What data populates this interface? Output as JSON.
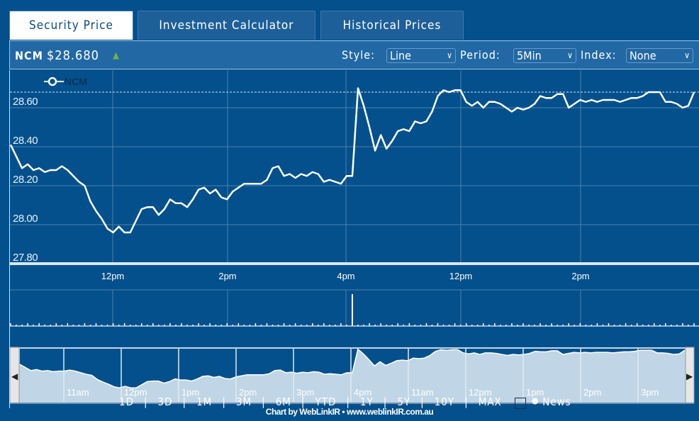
{
  "tabs": [
    {
      "label": "Security Price",
      "active": true
    },
    {
      "label": "Investment Calculator"
    },
    {
      "label": "Historical Prices"
    }
  ],
  "toolbar": {
    "symbol": "NCM",
    "price": "$28.680",
    "change_direction": "up",
    "style_label": "Style:",
    "style_value": "Line",
    "period_label": "Period:",
    "period_value": "5Min",
    "index_label": "Index:",
    "index_value": "None"
  },
  "chart_data": {
    "type": "line",
    "legend": "NCM",
    "legend_placement": "top-left",
    "last_price": 28.68,
    "ylim": [
      27.8,
      28.72
    ],
    "yticks": [
      "28.60",
      "28.40",
      "28.20",
      "28.00",
      "27.80"
    ],
    "ytick_values": [
      28.6,
      28.4,
      28.2,
      28.0,
      27.8
    ],
    "xticks": [
      "12pm",
      "2pm",
      "4pm",
      "12pm",
      "2pm"
    ],
    "grid": true,
    "values": [
      28.41,
      28.35,
      28.29,
      28.31,
      28.28,
      28.29,
      28.27,
      28.28,
      28.28,
      28.3,
      28.28,
      28.25,
      28.22,
      28.2,
      28.12,
      28.07,
      28.03,
      27.98,
      27.96,
      27.99,
      27.96,
      27.96,
      28.02,
      28.08,
      28.09,
      28.09,
      28.05,
      28.08,
      28.13,
      28.11,
      28.11,
      28.09,
      28.13,
      28.18,
      28.19,
      28.16,
      28.18,
      28.14,
      28.13,
      28.17,
      28.19,
      28.21,
      28.21,
      28.21,
      28.21,
      28.23,
      28.29,
      28.3,
      28.25,
      28.26,
      28.24,
      28.26,
      28.25,
      28.27,
      28.26,
      28.22,
      28.23,
      28.22,
      28.21,
      28.25,
      28.25,
      28.7,
      28.61,
      28.5,
      28.38,
      28.46,
      28.39,
      28.43,
      28.48,
      28.49,
      28.48,
      28.53,
      28.52,
      28.53,
      28.58,
      28.66,
      28.69,
      28.68,
      28.69,
      28.69,
      28.63,
      28.61,
      28.63,
      28.6,
      28.63,
      28.63,
      28.62,
      28.6,
      28.58,
      28.6,
      28.59,
      28.6,
      28.62,
      28.66,
      28.65,
      28.65,
      28.67,
      28.67,
      28.6,
      28.62,
      28.64,
      28.63,
      28.64,
      28.63,
      28.64,
      28.64,
      28.64,
      28.63,
      28.64,
      28.65,
      28.65,
      28.66,
      28.68,
      28.68,
      28.68,
      28.63,
      28.63,
      28.62,
      28.6,
      28.61,
      28.68
    ],
    "volume_spike_index": 60
  },
  "ranges": [
    "1D",
    "3D",
    "1M",
    "3M",
    "6M",
    "YTD",
    "1Y",
    "5Y",
    "10Y",
    "MAX"
  ],
  "news_label": "News",
  "navigator": {
    "xticks": [
      "11am",
      "12pm",
      "1pm",
      "2pm",
      "3pm",
      "4pm",
      "11am",
      "12pm",
      "1pm",
      "2pm",
      "3pm"
    ]
  },
  "footer": "Chart by WebLinkIR • www.weblinkIR.com.au",
  "colors": {
    "background": "#03508c",
    "line": "#ffffff",
    "up": "#6fb345",
    "navigator_fill": "#c0d6e6"
  }
}
